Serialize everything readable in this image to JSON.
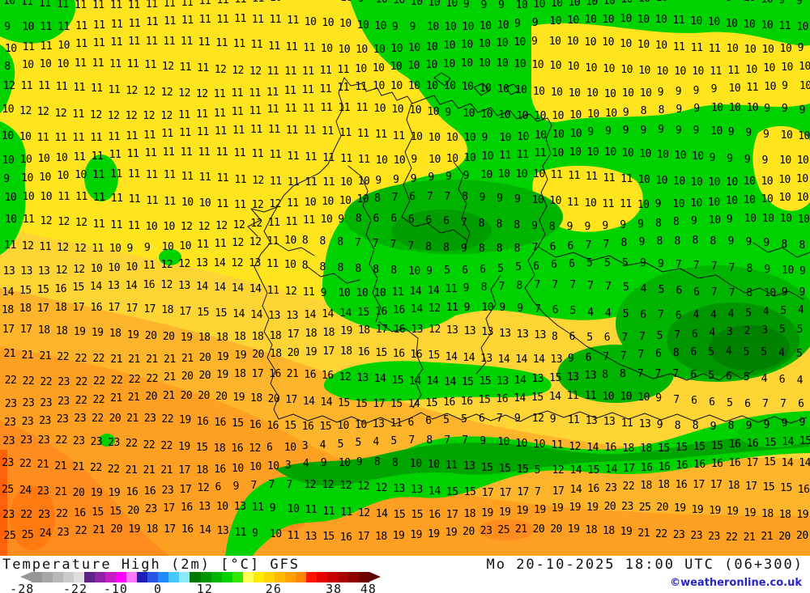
{
  "map": {
    "description": "Temperature field over Germany / Central Europe with per-gridpoint values in °C",
    "grid": {
      "rows": [
        "10 11 11 11 11 11 11 11 11 11 11 11 11 11 11 10 10 10 10 10 9 10 10 10 10 10 9 9 9 10 10 10 10 10 10 10 10 10 10 10 9 9 10 10 9 9",
        "9 10 11 11 11 11 11 11 11 11 11 11 11 11 11 11 11 10 10 10 10 10 9 9 10 10 10 10 10 9 9 10 10 10 10 10 10 10 11 10 10 10 10 10 11 10",
        "10 11 11 10 11 11 11 11 11 11 11 11 11 11 11 11 11 11 10 10 10 10 10 10 10 10 10 10 10 10 9 10 10 10 10 10 10 10 11 11 11 10 10 10 10 9",
        "8 10 10 10 11 11 11 11 11 12 11 11 12 12 12 11 11 11 11 11 10 10 10 10 10 10 10 10 10 10 10 10 10 10 10 10 10 10 10 10 11 11 10 10 10 10",
        "12 11 11 11 11 11 11 12 12 12 12 12 11 11 11 11 11 11 11 11 11 10 10 10 10 10 10 10 10 10 10 10 10 10 10 10 10 9 9 9 9 10 11 10 9 10",
        "10 12 12 12 11 12 12 12 12 12 11 11 11 11 11 11 11 11 11 11 11 10 10 10 10 9 10 10 10 10 10 10 10 10 10 9 8 8 9 9 10 10 10 9 9 9",
        "10 10 11 11 11 11 11 11 11 11 11 11 11 11 11 11 11 11 11 11 11 11 11 10 10 10 10 9 10 10 10 10 10 9 9 9 9 9 9 9 10 9 9 9 10 10",
        "10 10 10 10 11 11 11 11 11 11 11 11 11 11 11 11 11 11 11 11 11 10 10 9 10 10 10 10 11 11 11 10 10 10 10 10 10 10 10 10 9 9 9 9 10 10",
        "9 10 10 10 10 11 11 11 11 11 11 11 11 11 12 11 11 11 11 10 10 9 9 9 9 9 9 10 10 10 10 11 11 11 11 11 10 10 10 10 10 10 10 10 10 10",
        "10 10 10 11 11 11 11 11 11 11 10 10 11 11 12 12 11 10 10 10 10 8 7 6 7 7 8 9 9 9 10 10 11 10 11 11 10 9 10 10 10 10 10 10 10 10",
        "10 11 12 12 12 11 11 11 10 10 12 12 12 12 12 11 11 11 10 9 8 6 6 6 6 6 7 8 8 8 9 8 9 9 9 9 9 8 8 9 10 9 10 10 10 10",
        "11 12 11 12 12 11 10 9 9 10 10 11 11 12 12 11 10 8 8 8 7 7 7 7 8 8 9 8 8 8 7 6 6 7 7 8 9 8 8 8 8 9 9 9 8 8",
        "13 13 13 12 12 10 10 10 11 12 12 13 14 12 13 11 10 8 8 8 8 8 8 10 9 5 6 6 5 5 6 6 6 5 5 5 9 9 7 7 7 7 8 9 10 9",
        "14 15 15 16 15 14 13 14 16 12 13 14 14 14 14 11 12 11 9 10 10 10 11 14 14 11 9 8 7 8 7 7 7 7 7 5 4 5 6 6 7 7 8 10 9 9",
        "18 18 17 18 17 16 17 17 17 18 17 15 15 14 14 13 13 14 14 14 15 16 16 14 12 11 9 10 9 9 7 6 5 4 4 5 6 7 6 4 4 4 5 4 5 4",
        "17 17 18 18 19 19 18 19 20 20 19 18 18 18 18 18 17 18 18 19 18 17 16 13 12 13 13 13 13 13 13 8 6 5 6 7 7 5 7 6 4 3 2 3 5 5",
        "21 21 21 22 22 22 21 21 21 21 21 20 19 19 20 18 20 19 17 18 16 15 16 16 15 14 14 13 14 14 14 13 9 6 7 7 7 6 8 6 5 4 5 5 4 5",
        "22 22 22 23 22 22 22 22 22 21 20 20 19 18 17 16 21 16 16 12 13 14 15 14 14 14 15 15 13 14 13 15 13 13 8 8 7 7 7 6 5 6 5 4 6 4",
        "23 23 23 23 22 22 21 21 20 21 20 20 20 19 18 20 17 14 14 15 15 17 15 14 15 16 16 15 16 14 15 14 11 11 10 10 10 9 7 6 6 5 6 7 7 6",
        "23 23 23 23 23 22 20 21 23 22 19 16 16 15 16 16 15 16 15 10 10 13 11 6 6 5 5 6 7 9 12 9 11 13 13 11 13 9 8 8 9 8 9 9 9 9",
        "23 23 23 22 23 23 23 22 22 22 19 15 18 16 12 6 10 3 4 5 5 4 5 7 8 7 7 9 10 10 10 11 12 14 16 18 18 15 15 15 15 16 16 15 14 15",
        "23 22 21 21 21 22 22 21 21 21 17 18 16 10 10 10 3 4 9 10 9 8 8 10 10 11 13 15 15 15 5 12 14 15 14 17 16 16 16 16 16 16 17 15 14 14",
        "25 24 23 21 20 19 19 16 16 23 17 12 6 9 7 7 7 12 12 12 12 12 13 13 14 15 15 17 17 17 7 17 14 16 23 22 18 18 16 17 17 18 17 15 15 16",
        "23 22 23 22 16 15 15 20 23 17 16 13 10 13 11 9 10 11 11 11 12 14 15 15 16 17 18 19 19 19 19 19 19 19 20 23 25 20 19 19 19 19 19 18 18 19",
        "25 25 24 23 22 21 20 19 18 17 16 14 13 11 9 10 11 13 15 16 17 18 19 19 19 19 20 23 25 21 20 20 19 18 18 19 21 22 23 23 23 22 21 21 20 20"
      ]
    },
    "palette": {
      "yellow": "#FFE41E",
      "gold": "#FFD435",
      "light_orange": "#FFB52B",
      "orange": "#FFA023",
      "deep_orange": "#FF8C1E",
      "red_orange": "#FF6108",
      "green_bright": "#00D200",
      "green_mid": "#00BC00",
      "green_dark": "#00A500",
      "green_darker": "#009200",
      "green_darkest": "#008200"
    }
  },
  "legend": {
    "title": "Temperature High (2m) [°C] GFS",
    "datetime": "Mo 20-10-2025 18:00 UTC (06+300)",
    "watermark": "©weatheronline.co.uk",
    "colorbar": {
      "segments": [
        "#969696",
        "#a7a7a7",
        "#b9b9b9",
        "#cbcbcb",
        "#dedede",
        "#5f2387",
        "#9023a5",
        "#c51ec5",
        "#ff00ff",
        "#ff78ff",
        "#1e1eb9",
        "#2855e6",
        "#1e8cff",
        "#46c8ff",
        "#8ceaff",
        "#007800",
        "#009600",
        "#00b400",
        "#00d200",
        "#32e600",
        "#ffff50",
        "#ffeb00",
        "#ffd200",
        "#ffb900",
        "#ffa000",
        "#ff8700",
        "#ff1400",
        "#e60000",
        "#c80000",
        "#aa0000",
        "#8c0000",
        "#6e0000"
      ],
      "ticks": [
        {
          "label": "-28",
          "pct": 0.5
        },
        {
          "label": "-22",
          "pct": 15.3
        },
        {
          "label": "-10",
          "pct": 26.5
        },
        {
          "label": "0",
          "pct": 38.2
        },
        {
          "label": "12",
          "pct": 51.2
        },
        {
          "label": "26",
          "pct": 70.3
        },
        {
          "label": "38",
          "pct": 87.0
        },
        {
          "label": "48",
          "pct": 96.6
        }
      ]
    }
  }
}
